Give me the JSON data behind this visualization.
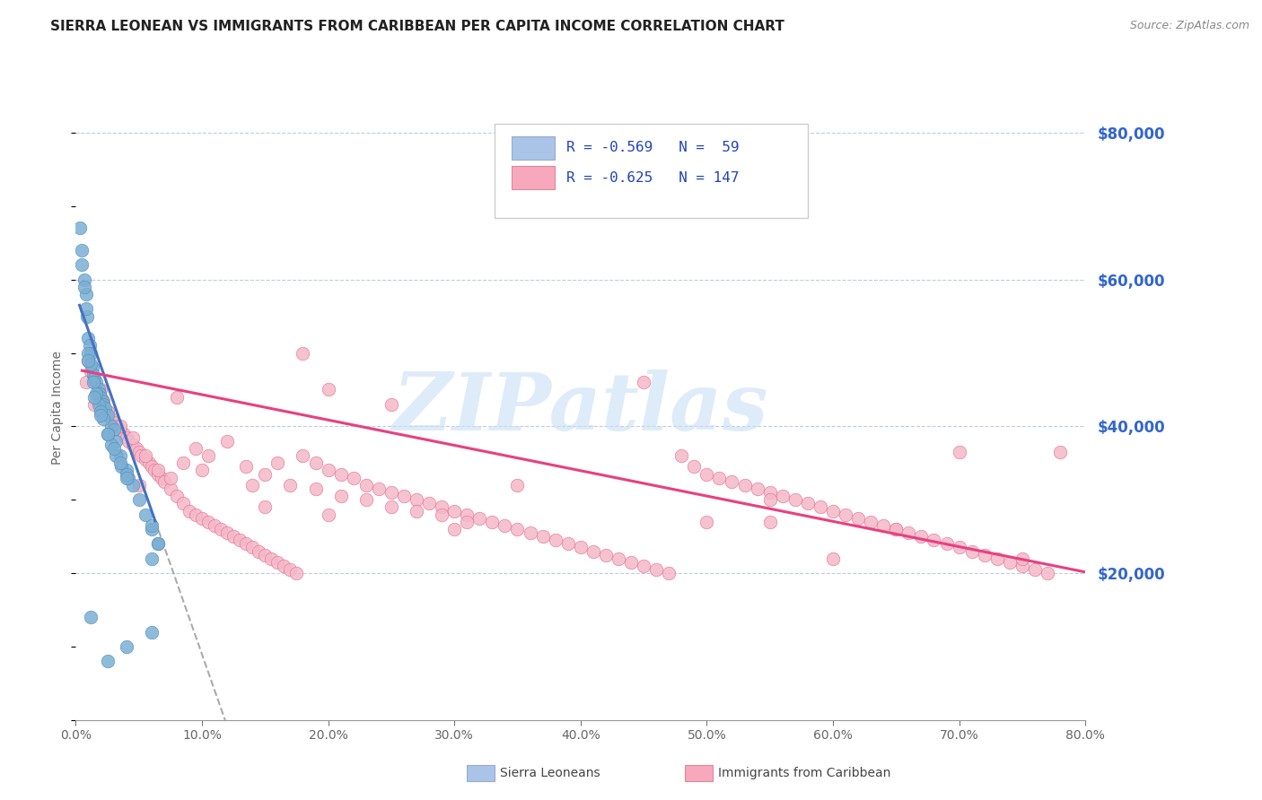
{
  "title": "SIERRA LEONEAN VS IMMIGRANTS FROM CARIBBEAN PER CAPITA INCOME CORRELATION CHART",
  "source": "Source: ZipAtlas.com",
  "ylabel": "Per Capita Income",
  "ytick_values": [
    20000,
    40000,
    60000,
    80000
  ],
  "ymin": 0,
  "ymax": 85000,
  "xmin": 0.0,
  "xmax": 0.8,
  "legend_color1": "#aac4e8",
  "legend_color2": "#f7a8bc",
  "watermark": "ZIPatlas",
  "watermark_color": "#c8dff5",
  "series1_color": "#7bafd4",
  "series1_edge": "#5590bb",
  "series2_color": "#f4b8c8",
  "series2_edge": "#e87090",
  "line1_color": "#4472c4",
  "line2_color": "#e84080",
  "series1_label": "Sierra Leoneans",
  "series2_label": "Immigrants from Caribbean",
  "sierra_x": [
    0.003,
    0.005,
    0.007,
    0.008,
    0.009,
    0.01,
    0.011,
    0.012,
    0.013,
    0.014,
    0.015,
    0.016,
    0.018,
    0.019,
    0.02,
    0.021,
    0.022,
    0.023,
    0.025,
    0.028,
    0.03,
    0.032,
    0.035,
    0.04,
    0.042,
    0.045,
    0.05,
    0.055,
    0.06,
    0.065,
    0.005,
    0.007,
    0.01,
    0.012,
    0.014,
    0.016,
    0.018,
    0.02,
    0.022,
    0.025,
    0.028,
    0.032,
    0.036,
    0.04,
    0.06,
    0.065,
    0.008,
    0.01,
    0.015,
    0.02,
    0.025,
    0.03,
    0.035,
    0.04,
    0.06,
    0.025,
    0.04,
    0.06,
    0.012
  ],
  "sierra_y": [
    67000,
    62000,
    60000,
    58000,
    55000,
    52000,
    51000,
    50000,
    48000,
    47000,
    46500,
    46000,
    45000,
    44500,
    44000,
    43500,
    43000,
    42500,
    41500,
    40000,
    39500,
    38000,
    36000,
    34000,
    33000,
    32000,
    30000,
    28000,
    26000,
    24000,
    64000,
    59000,
    50000,
    48500,
    46000,
    44500,
    43000,
    42000,
    41000,
    39000,
    37500,
    36000,
    34500,
    33500,
    26500,
    24000,
    56000,
    49000,
    44000,
    41500,
    39000,
    37000,
    35000,
    33000,
    22000,
    8000,
    10000,
    12000,
    14000
  ],
  "carib_x": [
    0.01,
    0.012,
    0.015,
    0.018,
    0.02,
    0.022,
    0.025,
    0.028,
    0.03,
    0.032,
    0.035,
    0.038,
    0.04,
    0.042,
    0.045,
    0.048,
    0.05,
    0.052,
    0.055,
    0.058,
    0.06,
    0.062,
    0.065,
    0.068,
    0.07,
    0.075,
    0.08,
    0.085,
    0.09,
    0.095,
    0.1,
    0.105,
    0.11,
    0.115,
    0.12,
    0.125,
    0.13,
    0.135,
    0.14,
    0.145,
    0.15,
    0.155,
    0.16,
    0.165,
    0.17,
    0.175,
    0.18,
    0.19,
    0.2,
    0.21,
    0.22,
    0.23,
    0.24,
    0.25,
    0.26,
    0.27,
    0.28,
    0.29,
    0.3,
    0.31,
    0.32,
    0.33,
    0.34,
    0.35,
    0.36,
    0.37,
    0.38,
    0.39,
    0.4,
    0.41,
    0.42,
    0.43,
    0.44,
    0.45,
    0.46,
    0.47,
    0.48,
    0.49,
    0.5,
    0.51,
    0.52,
    0.53,
    0.54,
    0.55,
    0.56,
    0.57,
    0.58,
    0.59,
    0.6,
    0.61,
    0.62,
    0.63,
    0.64,
    0.65,
    0.66,
    0.67,
    0.68,
    0.69,
    0.7,
    0.71,
    0.72,
    0.73,
    0.74,
    0.75,
    0.76,
    0.77,
    0.78,
    0.008,
    0.015,
    0.025,
    0.035,
    0.045,
    0.055,
    0.065,
    0.075,
    0.085,
    0.095,
    0.105,
    0.12,
    0.135,
    0.15,
    0.17,
    0.19,
    0.21,
    0.23,
    0.25,
    0.27,
    0.29,
    0.31,
    0.14,
    0.16,
    0.18,
    0.2,
    0.35,
    0.5,
    0.6,
    0.7,
    0.08,
    0.25,
    0.45,
    0.55,
    0.65,
    0.75,
    0.05,
    0.1,
    0.15,
    0.2,
    0.3,
    0.55,
    0.02
  ],
  "carib_y": [
    49000,
    47500,
    46000,
    44500,
    44000,
    43500,
    42000,
    41000,
    40500,
    40000,
    39500,
    39000,
    38500,
    38000,
    37500,
    37000,
    36500,
    36000,
    35500,
    35000,
    34500,
    34000,
    33500,
    33000,
    32500,
    31500,
    30500,
    29500,
    28500,
    28000,
    27500,
    27000,
    26500,
    26000,
    25500,
    25000,
    24500,
    24000,
    23500,
    23000,
    22500,
    22000,
    21500,
    21000,
    20500,
    20000,
    36000,
    35000,
    34000,
    33500,
    33000,
    32000,
    31500,
    31000,
    30500,
    30000,
    29500,
    29000,
    28500,
    28000,
    27500,
    27000,
    26500,
    26000,
    25500,
    25000,
    24500,
    24000,
    23500,
    23000,
    22500,
    22000,
    21500,
    21000,
    20500,
    20000,
    36000,
    34500,
    33500,
    33000,
    32500,
    32000,
    31500,
    31000,
    30500,
    30000,
    29500,
    29000,
    28500,
    28000,
    27500,
    27000,
    26500,
    26000,
    25500,
    25000,
    24500,
    24000,
    23500,
    23000,
    22500,
    22000,
    21500,
    21000,
    20500,
    20000,
    36500,
    46000,
    43000,
    42000,
    40000,
    38500,
    36000,
    34000,
    33000,
    35000,
    37000,
    36000,
    38000,
    34500,
    33500,
    32000,
    31500,
    30500,
    30000,
    29000,
    28500,
    28000,
    27000,
    32000,
    35000,
    50000,
    45000,
    32000,
    27000,
    22000,
    36500,
    44000,
    43000,
    46000,
    30000,
    26000,
    22000,
    32000,
    34000,
    29000,
    28000,
    26000,
    27000,
    45000
  ]
}
